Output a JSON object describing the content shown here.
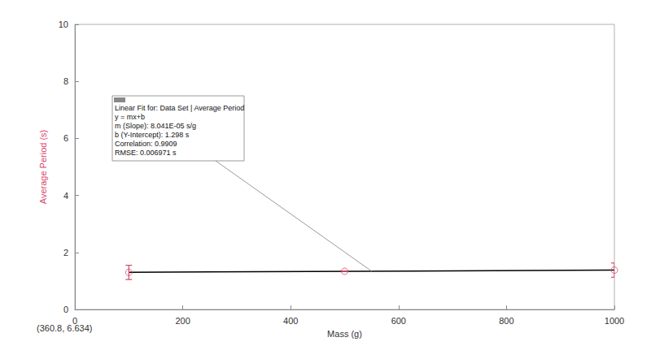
{
  "chart_data": {
    "type": "scatter",
    "x_label": "Mass (g)",
    "y_label": "Average Period (s)",
    "xlim": [
      0,
      1000
    ],
    "xticks": [
      0,
      200,
      400,
      600,
      800,
      1000
    ],
    "ylim": [
      0,
      10
    ],
    "yticks": [
      0,
      2,
      4,
      6,
      8,
      10
    ],
    "grid": false,
    "color": "#d9486a",
    "marker": "circle",
    "x": [
      100,
      500,
      1000
    ],
    "values": [
      1.3,
      1.34,
      1.38
    ],
    "errors": [
      0.25,
      0,
      0.25
    ],
    "fit": {
      "slope": 8.041e-05,
      "intercept": 1.298,
      "x_range": [
        100,
        1000
      ],
      "color": "#000000",
      "annotation_at": 550
    },
    "annotation": [
      "Linear Fit for: Data Set | Average Period",
      "y = mx+b",
      "m (Slope): 8.041E-05 s/g",
      "b (Y-Intercept): 1.298 s",
      "Correlation: 0.9909",
      "RMSE: 0.006971 s"
    ],
    "readout": "(360.8, 6.634)"
  }
}
